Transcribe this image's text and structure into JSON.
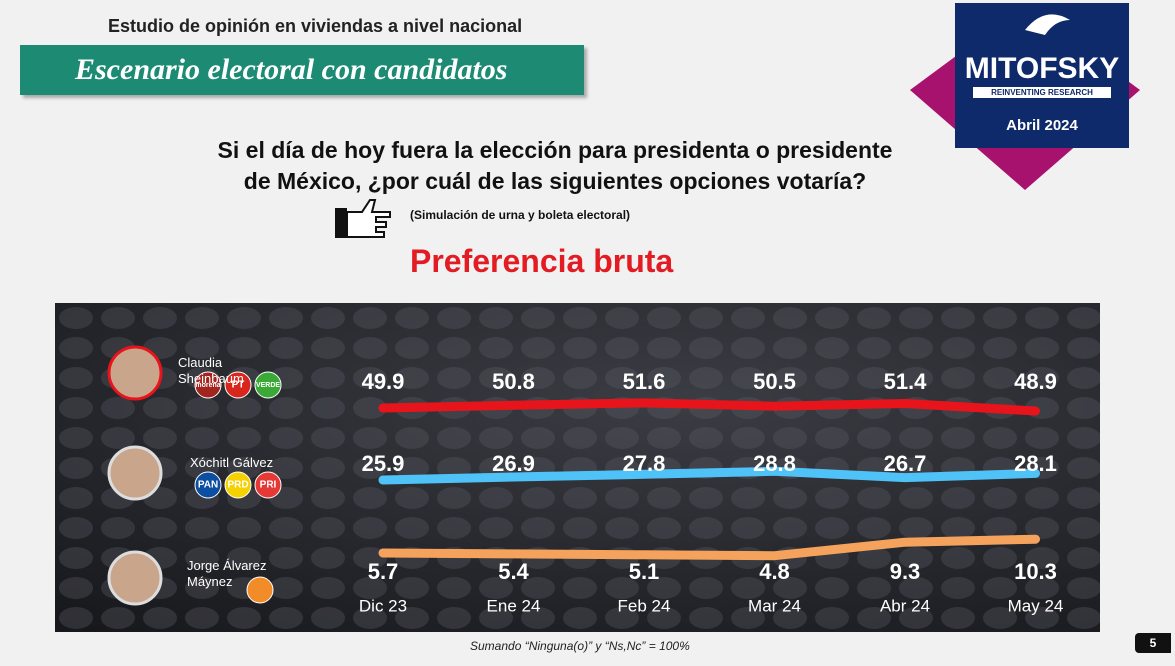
{
  "header": {
    "study": "Estudio de opinión en viviendas a nivel nacional",
    "banner": "Escenario electoral con candidatos"
  },
  "logo": {
    "brand": "MITOFSKY",
    "tagline": "REINVENTING RESEARCH",
    "date": "Abril 2024"
  },
  "question": {
    "line1": "Si el día de hoy fuera la elección para presidenta o presidente",
    "line2": "de México, ¿por cuál de las siguientes opciones votaría?",
    "note": "(Simulación de urna y boleta electoral)"
  },
  "chart_data": {
    "type": "line",
    "title": "Preferencia bruta",
    "categories": [
      "Dic 23",
      "Ene 24",
      "Feb 24",
      "Mar 24",
      "Abr 24",
      "May 24"
    ],
    "series": [
      {
        "name": "Claudia Sheinbaum",
        "color": "#e8141b",
        "values": [
          49.9,
          50.8,
          51.6,
          50.5,
          51.4,
          48.9
        ],
        "parties": [
          {
            "label": "morena",
            "color": "#a3241f"
          },
          {
            "label": "PT",
            "color": "#d9261c"
          },
          {
            "label": "VERDE",
            "color": "#3aa935"
          }
        ]
      },
      {
        "name": "Xóchitl Gálvez",
        "color": "#4fc3f7",
        "values": [
          25.9,
          26.9,
          27.8,
          28.8,
          26.7,
          28.1
        ],
        "parties": [
          {
            "label": "PAN",
            "color": "#0b4ea2"
          },
          {
            "label": "PRD",
            "color": "#f5d100"
          },
          {
            "label": "PRI",
            "color": "#e53935"
          }
        ]
      },
      {
        "name": "Jorge Álvarez Máynez",
        "color": "#f5a35c",
        "values": [
          5.7,
          5.4,
          5.1,
          4.8,
          9.3,
          10.3
        ],
        "parties": [
          {
            "color": "#f28c28"
          }
        ]
      }
    ],
    "footnote": "Sumando “Ninguna(o)” y “Ns,Nc” = 100%"
  },
  "page_number": "5"
}
